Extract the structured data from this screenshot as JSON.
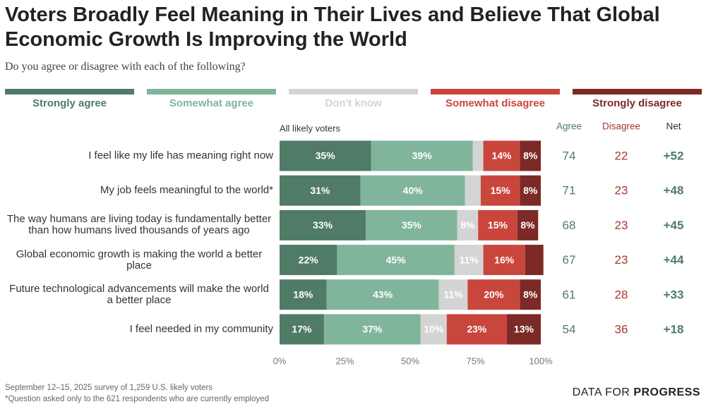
{
  "chart_data": {
    "type": "bar",
    "orientation": "horizontal",
    "stacked": true,
    "title": "Voters Broadly Feel Meaning in Their Lives and Believe That Global Economic Growth Is Improving the World",
    "subtitle": "Do you agree or disagree with each of the following?",
    "bars_label": "All likely voters",
    "categories": [
      "I feel like my life has meaning right now",
      "My job feels meaningful to the world*",
      "The way humans are living today is fundamentally better than how humans lived thousands of years ago",
      "Global economic growth is making the world a better place",
      "Future technological advancements will make the world a better place",
      "I feel needed in my community"
    ],
    "series": [
      {
        "name": "Strongly agree",
        "color": "#4f7b67",
        "values": [
          35,
          31,
          33,
          22,
          18,
          17
        ],
        "value_labels": [
          "35%",
          "31%",
          "33%",
          "22%",
          "18%",
          "17%"
        ]
      },
      {
        "name": "Somewhat agree",
        "color": "#80b59c",
        "values": [
          39,
          40,
          35,
          45,
          43,
          37
        ],
        "value_labels": [
          "39%",
          "40%",
          "35%",
          "45%",
          "43%",
          "37%"
        ]
      },
      {
        "name": "Don't know",
        "color": "#d4d4d4",
        "values": [
          4,
          6,
          8,
          11,
          11,
          10
        ],
        "value_labels": [
          null,
          null,
          "8%",
          "11%",
          "11%",
          "10%"
        ]
      },
      {
        "name": "Somewhat disagree",
        "color": "#c9463d",
        "values": [
          14,
          15,
          15,
          16,
          20,
          23
        ],
        "value_labels": [
          "14%",
          "15%",
          "15%",
          "16%",
          "20%",
          "23%"
        ]
      },
      {
        "name": "Strongly disagree",
        "color": "#7b2a26",
        "values": [
          8,
          8,
          8,
          7,
          8,
          13
        ],
        "value_labels": [
          "8%",
          "8%",
          "8%",
          null,
          "8%",
          "13%"
        ]
      }
    ],
    "xlim": [
      0,
      100
    ],
    "xticks": [
      {
        "value": 0,
        "label": "0%"
      },
      {
        "value": 25,
        "label": "25%"
      },
      {
        "value": 50,
        "label": "50%"
      },
      {
        "value": 75,
        "label": "75%"
      },
      {
        "value": 100,
        "label": "100%"
      }
    ],
    "columns": [
      {
        "name": "Agree",
        "color": "#4f7b67",
        "values": [
          74,
          71,
          68,
          67,
          61,
          54
        ]
      },
      {
        "name": "Disagree",
        "color": "#a9372f",
        "values": [
          22,
          23,
          23,
          23,
          28,
          36
        ]
      },
      {
        "name": "Net",
        "color": "#4f7b67",
        "values": [
          52,
          48,
          45,
          44,
          33,
          18
        ],
        "value_labels": [
          "+52",
          "+48",
          "+45",
          "+44",
          "+33",
          "+18"
        ]
      }
    ]
  },
  "notes": [
    "September 12–15, 2025 survey of 1,259 U.S. likely voters",
    "*Question asked only to the 621 respondents who are currently employed"
  ],
  "brand": [
    "DATA FOR",
    "PROGRESS"
  ]
}
